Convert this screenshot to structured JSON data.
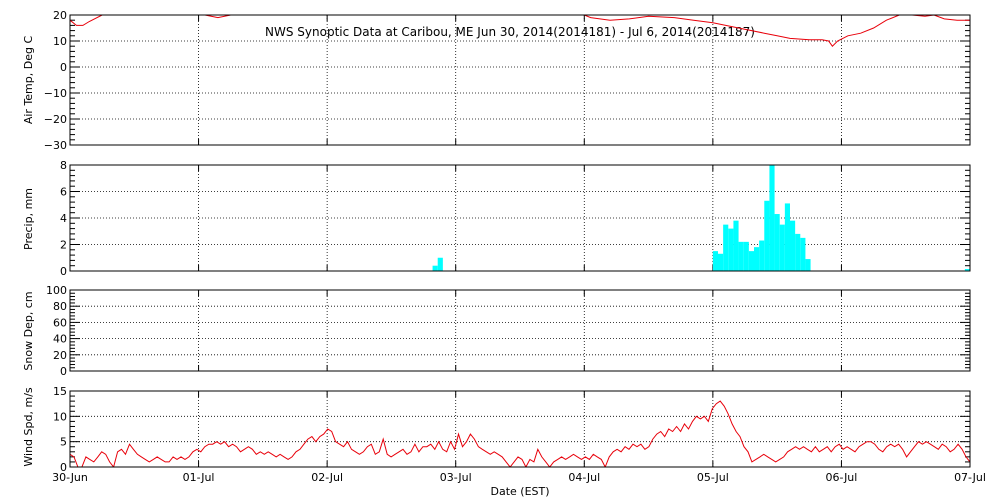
{
  "title": "NWS Synoptic Data at Caribou, ME   Jun 30, 2014(2014181) - Jul  6, 2014(2014187)",
  "xlabel": "Date (EST)",
  "x_ticks": [
    "30-Jun",
    "01-Jul",
    "02-Jul",
    "03-Jul",
    "04-Jul",
    "05-Jul",
    "06-Jul",
    "07-Jul"
  ],
  "colors": {
    "line": "#e8000a",
    "bar": "#00ffff",
    "axis": "#000000",
    "grid": "#000000"
  },
  "chart_data": [
    {
      "type": "line",
      "ylabel": "Air Temp, Deg C",
      "ylim": [
        -30,
        20
      ],
      "yticks": [
        "20",
        "10",
        "0",
        "−10",
        "−20",
        "−30"
      ],
      "x_units": "days since 30-Jun 00:00 EST",
      "series": [
        {
          "x": [
            0,
            0.05,
            0.1,
            0.15,
            0.25,
            1.05,
            1.15,
            1.25,
            4.0,
            4.05,
            4.2,
            4.35,
            4.5,
            4.7,
            4.85,
            5.0,
            5.2,
            5.4,
            5.5,
            5.6,
            5.75,
            5.85,
            5.9,
            5.93,
            5.97,
            6.05,
            6.15,
            6.25,
            6.35,
            6.45,
            6.55,
            6.65,
            6.72,
            6.8,
            6.9,
            7.0
          ],
          "values": [
            18,
            16,
            16,
            17.5,
            20,
            20,
            19,
            20,
            20,
            19,
            18,
            18.5,
            19.5,
            19,
            18,
            17,
            15,
            13,
            12,
            11,
            10.5,
            10.5,
            10,
            8,
            10,
            12,
            13,
            15,
            18,
            20,
            20,
            19.5,
            20,
            18.5,
            18,
            18
          ]
        }
      ]
    },
    {
      "type": "bar",
      "ylabel": "Precip, mm",
      "ylim": [
        0,
        8
      ],
      "yticks": [
        "8",
        "6",
        "4",
        "2",
        "0"
      ],
      "bars": [
        [
          2.82,
          0.4
        ],
        [
          2.86,
          1.0
        ],
        [
          5.0,
          1.5
        ],
        [
          5.04,
          1.3
        ],
        [
          5.08,
          3.5
        ],
        [
          5.12,
          3.2
        ],
        [
          5.16,
          3.8
        ],
        [
          5.2,
          2.2
        ],
        [
          5.24,
          2.2
        ],
        [
          5.28,
          1.5
        ],
        [
          5.32,
          1.8
        ],
        [
          5.36,
          2.3
        ],
        [
          5.4,
          5.3
        ],
        [
          5.44,
          8.0
        ],
        [
          5.48,
          4.3
        ],
        [
          5.52,
          3.5
        ],
        [
          5.56,
          5.1
        ],
        [
          5.6,
          3.8
        ],
        [
          5.64,
          2.8
        ],
        [
          5.68,
          2.5
        ],
        [
          5.72,
          0.9
        ],
        [
          6.96,
          0.15
        ],
        [
          6.99,
          0.15
        ]
      ]
    },
    {
      "type": "line",
      "ylabel": "Snow Dep, cm",
      "ylim": [
        0,
        100
      ],
      "yticks": [
        "100",
        "80",
        "60",
        "40",
        "20",
        "0"
      ],
      "series": []
    },
    {
      "type": "line",
      "ylabel": "Wind Spd, m/s",
      "ylim": [
        0,
        15
      ],
      "yticks": [
        "15",
        "10",
        "5",
        "0"
      ],
      "series": [
        {
          "values": [
            2.5,
            2,
            0,
            0,
            2,
            1.5,
            1,
            2,
            3,
            2.5,
            1,
            0,
            3,
            3.5,
            2.5,
            4.5,
            3.5,
            2.5,
            2,
            1.5,
            1,
            1.5,
            2,
            1.5,
            1,
            1,
            2,
            1.5,
            2,
            1.5,
            2,
            3,
            3.5,
            3,
            4,
            4.5,
            4.5,
            5,
            4.5,
            5,
            4,
            4.5,
            4,
            3,
            3.5,
            4,
            3.5,
            2.5,
            3,
            2.5,
            3,
            2.5,
            2,
            2.5,
            2,
            1.5,
            2,
            3,
            3.5,
            4.5,
            5.5,
            6,
            5,
            6,
            6.5,
            7.5,
            7,
            5,
            4.5,
            4,
            5,
            3.5,
            3,
            2.5,
            3,
            4,
            4.5,
            2.5,
            3,
            5.5,
            2.5,
            2,
            2.5,
            3,
            3.5,
            2.5,
            3,
            4.5,
            3,
            4,
            4,
            4.5,
            3.5,
            5,
            3.5,
            3,
            5,
            3.5,
            6.5,
            4,
            5,
            6.5,
            5.5,
            4,
            3.5,
            3,
            2.5,
            3,
            2.5,
            2,
            1,
            0,
            1,
            2,
            1.5,
            0,
            1.5,
            1,
            3.5,
            2,
            1,
            0,
            1,
            1.5,
            2,
            1.5,
            2,
            2.5,
            2,
            1.5,
            2,
            1.5,
            2.5,
            2,
            1.5,
            0,
            2,
            3,
            3.5,
            3,
            4,
            3.5,
            4.5,
            4,
            4.5,
            3.5,
            4,
            5.5,
            6.5,
            7,
            6,
            7.5,
            7,
            8,
            7,
            8.5,
            7.5,
            9,
            10,
            9.5,
            10,
            9,
            11.5,
            12.5,
            13,
            12,
            10.5,
            8.5,
            7,
            6,
            4,
            3,
            1,
            1.5,
            2,
            2.5,
            2,
            1.5,
            1,
            1.5,
            2,
            3,
            3.5,
            4,
            3.5,
            4,
            3.5,
            3,
            4,
            3,
            3.5,
            4,
            3,
            4,
            4.5,
            3.5,
            4,
            3.5,
            3,
            4,
            4.5,
            5,
            5,
            4.5,
            3.5,
            3,
            4,
            4.5,
            4,
            4.5,
            3.5,
            2,
            3,
            4,
            5,
            4.5,
            5,
            4.5,
            4,
            3.5,
            4.5,
            4,
            3,
            3.5,
            4.5,
            3.5,
            2,
            1
          ]
        }
      ]
    }
  ]
}
